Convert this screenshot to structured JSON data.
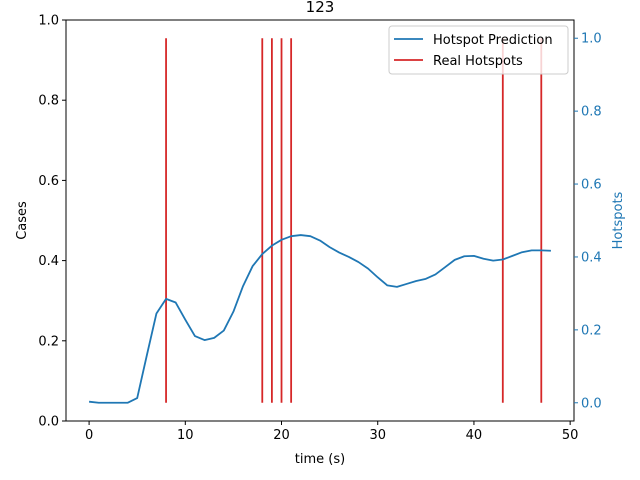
{
  "chart_data": {
    "type": "line",
    "title": "123",
    "xlabel": "time (s)",
    "ylabel": "Cases",
    "y2label": "Hotspots",
    "xlim": [
      -2.4,
      50.4
    ],
    "ylim": [
      0,
      1
    ],
    "y2lim": [
      -0.05,
      1.05
    ],
    "x_ticks": [
      0,
      10,
      20,
      30,
      40,
      50
    ],
    "x_tick_labels": [
      "0",
      "10",
      "20",
      "30",
      "40",
      "50"
    ],
    "y_ticks": [
      0.0,
      0.2,
      0.4,
      0.6,
      0.8,
      1.0
    ],
    "y_tick_labels": [
      "0.0",
      "0.2",
      "0.4",
      "0.6",
      "0.8",
      "1.0"
    ],
    "y2_ticks": [
      0.0,
      0.2,
      0.4,
      0.6,
      0.8,
      1.0
    ],
    "y2_tick_labels": [
      "0.0",
      "0.2",
      "0.4",
      "0.6",
      "0.8",
      "1.0"
    ],
    "legend_position": "top-right",
    "series": [
      {
        "name": "Hotspot Prediction",
        "axis": "right",
        "color": "#1f77b4",
        "x": [
          0,
          1,
          2,
          3,
          4,
          5,
          6,
          7,
          8,
          9,
          10,
          11,
          12,
          13,
          14,
          15,
          16,
          17,
          18,
          19,
          20,
          21,
          22,
          23,
          24,
          25,
          26,
          27,
          28,
          29,
          30,
          31,
          32,
          33,
          34,
          35,
          36,
          37,
          38,
          39,
          40,
          41,
          42,
          43,
          44,
          45,
          46,
          47,
          48
        ],
        "y": [
          0.003,
          0.0,
          0.0,
          0.0,
          0.0,
          0.013,
          0.13,
          0.245,
          0.285,
          0.275,
          0.228,
          0.183,
          0.172,
          0.178,
          0.198,
          0.25,
          0.32,
          0.375,
          0.408,
          0.431,
          0.447,
          0.457,
          0.46,
          0.457,
          0.445,
          0.427,
          0.412,
          0.4,
          0.386,
          0.368,
          0.344,
          0.322,
          0.318,
          0.326,
          0.334,
          0.34,
          0.352,
          0.372,
          0.392,
          0.402,
          0.403,
          0.395,
          0.39,
          0.393,
          0.403,
          0.413,
          0.418,
          0.418,
          0.417
        ]
      },
      {
        "name": "Real Hotspots",
        "axis": "right",
        "color": "#d62728",
        "type": "vlines",
        "x": [
          8,
          18,
          19,
          20,
          21,
          43,
          47
        ],
        "ymin": 0.0,
        "ymax": 1.0
      }
    ]
  },
  "colors": {
    "prediction": "#1f77b4",
    "real": "#d62728",
    "right_axis": "#1f77b4",
    "axis": "#000000"
  }
}
